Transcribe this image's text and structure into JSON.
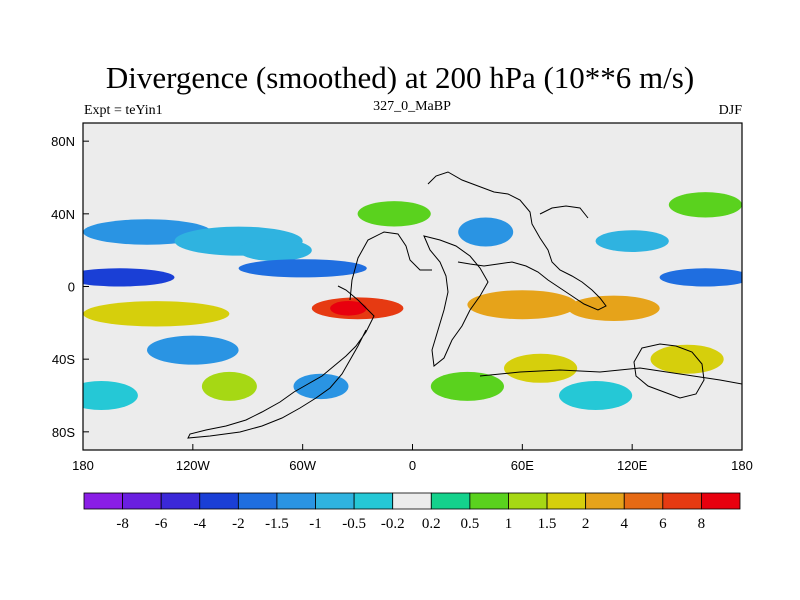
{
  "chart_data": {
    "type": "heatmap",
    "title": "Divergence (smoothed) at 200 hPa (10**6 m/s)",
    "subtitle": "327_0_MaBP",
    "left_string": "Expt = teYin1",
    "right_string": "DJF",
    "x_ticks": [
      "180",
      "120W",
      "60W",
      "0",
      "60E",
      "120E",
      "180"
    ],
    "y_ticks": [
      "80N",
      "40N",
      "0",
      "40S",
      "80S"
    ],
    "x_range": [
      -180,
      180
    ],
    "y_range": [
      -90,
      90
    ],
    "legend_labels": [
      "-8",
      "-6",
      "-4",
      "-2",
      "-1.5",
      "-1",
      "-0.5",
      "-0.2",
      "0.2",
      "0.5",
      "1",
      "1.5",
      "2",
      "4",
      "6",
      "8"
    ],
    "legend_colors": [
      "#8a1ee6",
      "#6a1fe0",
      "#3b28d8",
      "#1a3fd6",
      "#1f6ee0",
      "#2a94e3",
      "#2fb3e0",
      "#25c8d6",
      "#ececec",
      "#14d28c",
      "#5ad21e",
      "#a6d814",
      "#d6cf0c",
      "#e6a31a",
      "#e66a14",
      "#e63a12",
      "#e8000e"
    ],
    "patterns": [
      {
        "lon": -145,
        "lat": 30,
        "sx": 35,
        "sy": 7,
        "level": 5
      },
      {
        "lon": -95,
        "lat": 25,
        "sx": 35,
        "sy": 8,
        "level": 6
      },
      {
        "lon": -75,
        "lat": 20,
        "sx": 20,
        "sy": 6,
        "level": 6
      },
      {
        "lon": -140,
        "lat": -15,
        "sx": 40,
        "sy": 7,
        "level": 12
      },
      {
        "lon": -30,
        "lat": -12,
        "sx": 25,
        "sy": 6,
        "level": 15
      },
      {
        "lon": -35,
        "lat": -12,
        "sx": 10,
        "sy": 4,
        "level": 16
      },
      {
        "lon": 60,
        "lat": -10,
        "sx": 30,
        "sy": 8,
        "level": 13
      },
      {
        "lon": 110,
        "lat": -12,
        "sx": 25,
        "sy": 7,
        "level": 13
      },
      {
        "lon": -160,
        "lat": 5,
        "sx": 30,
        "sy": 5,
        "level": 3
      },
      {
        "lon": -60,
        "lat": 10,
        "sx": 35,
        "sy": 5,
        "level": 4
      },
      {
        "lon": 160,
        "lat": 5,
        "sx": 25,
        "sy": 5,
        "level": 4
      },
      {
        "lon": 40,
        "lat": 30,
        "sx": 15,
        "sy": 8,
        "level": 5
      },
      {
        "lon": 120,
        "lat": 25,
        "sx": 20,
        "sy": 6,
        "level": 6
      },
      {
        "lon": -120,
        "lat": -35,
        "sx": 25,
        "sy": 8,
        "level": 5
      },
      {
        "lon": -50,
        "lat": -55,
        "sx": 15,
        "sy": 7,
        "level": 5
      },
      {
        "lon": 70,
        "lat": -45,
        "sx": 20,
        "sy": 8,
        "level": 12
      },
      {
        "lon": 150,
        "lat": -40,
        "sx": 20,
        "sy": 8,
        "level": 12
      },
      {
        "lon": -100,
        "lat": -55,
        "sx": 15,
        "sy": 8,
        "level": 11
      },
      {
        "lon": 30,
        "lat": -55,
        "sx": 20,
        "sy": 8,
        "level": 10
      },
      {
        "lon": -170,
        "lat": -60,
        "sx": 20,
        "sy": 8,
        "level": 7
      },
      {
        "lon": 100,
        "lat": -60,
        "sx": 20,
        "sy": 8,
        "level": 7
      },
      {
        "lon": -10,
        "lat": 40,
        "sx": 20,
        "sy": 7,
        "level": 10
      },
      {
        "lon": 160,
        "lat": 45,
        "sx": 20,
        "sy": 7,
        "level": 10
      }
    ]
  }
}
